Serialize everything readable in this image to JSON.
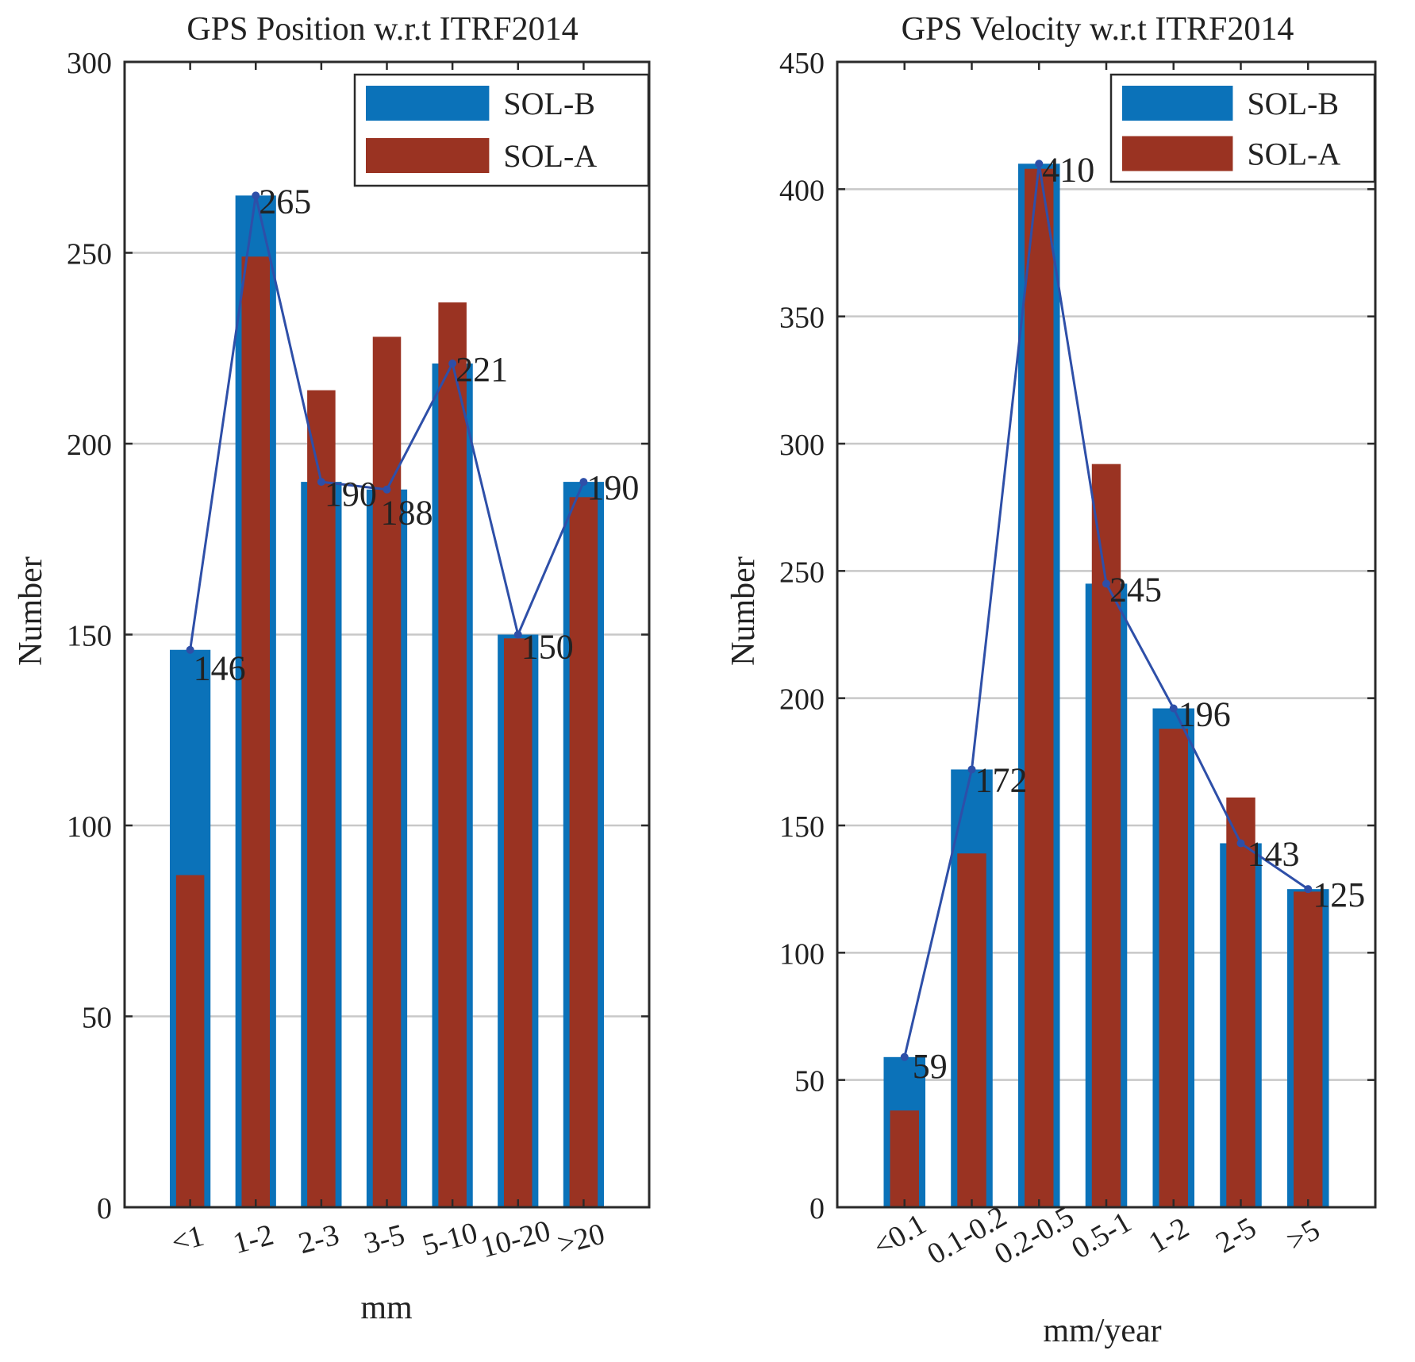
{
  "colors": {
    "sol_b": "#0b72b9",
    "sol_a": "#9a3322",
    "line": "#2e4fa8",
    "grid": "#c8c8c8",
    "axis": "#2a2a2a",
    "text": "#222222"
  },
  "chart_data": [
    {
      "type": "bar",
      "title": "GPS Position w.r.t ITRF2014",
      "xlabel": "mm",
      "ylabel": "Number",
      "ylim": [
        0,
        300
      ],
      "yticks": [
        0,
        50,
        100,
        150,
        200,
        250,
        300
      ],
      "grid": true,
      "legend": "top-right",
      "categories": [
        "<1",
        "1-2",
        "2-3",
        "3-5",
        "5-10",
        "10-20",
        ">20"
      ],
      "series": [
        {
          "name": "SOL-B",
          "values": [
            146,
            265,
            190,
            188,
            221,
            150,
            190
          ]
        },
        {
          "name": "SOL-A",
          "values": [
            87,
            249,
            214,
            228,
            237,
            149,
            186
          ]
        }
      ],
      "line_series": {
        "of": "SOL-B",
        "values": [
          146,
          265,
          190,
          188,
          221,
          150,
          190
        ]
      },
      "data_labels": [
        "146",
        "265",
        "190",
        "188",
        "221",
        "150",
        "190"
      ]
    },
    {
      "type": "bar",
      "title": "GPS Velocity w.r.t ITRF2014",
      "xlabel": "mm/year",
      "ylabel": "Number",
      "ylim": [
        0,
        450
      ],
      "yticks": [
        0,
        50,
        100,
        150,
        200,
        250,
        300,
        350,
        400,
        450
      ],
      "grid": true,
      "legend": "top-right",
      "categories": [
        "<0.1",
        "0.1-0.2",
        "0.2-0.5",
        "0.5-1",
        "1-2",
        "2-5",
        ">5"
      ],
      "series": [
        {
          "name": "SOL-B",
          "values": [
            59,
            172,
            410,
            245,
            196,
            143,
            125
          ]
        },
        {
          "name": "SOL-A",
          "values": [
            38,
            139,
            408,
            292,
            188,
            161,
            124
          ]
        }
      ],
      "line_series": {
        "of": "SOL-B",
        "values": [
          59,
          172,
          410,
          245,
          196,
          143,
          125
        ]
      },
      "data_labels": [
        "59",
        "172",
        "410",
        "245",
        "196",
        "143",
        "125"
      ]
    }
  ]
}
